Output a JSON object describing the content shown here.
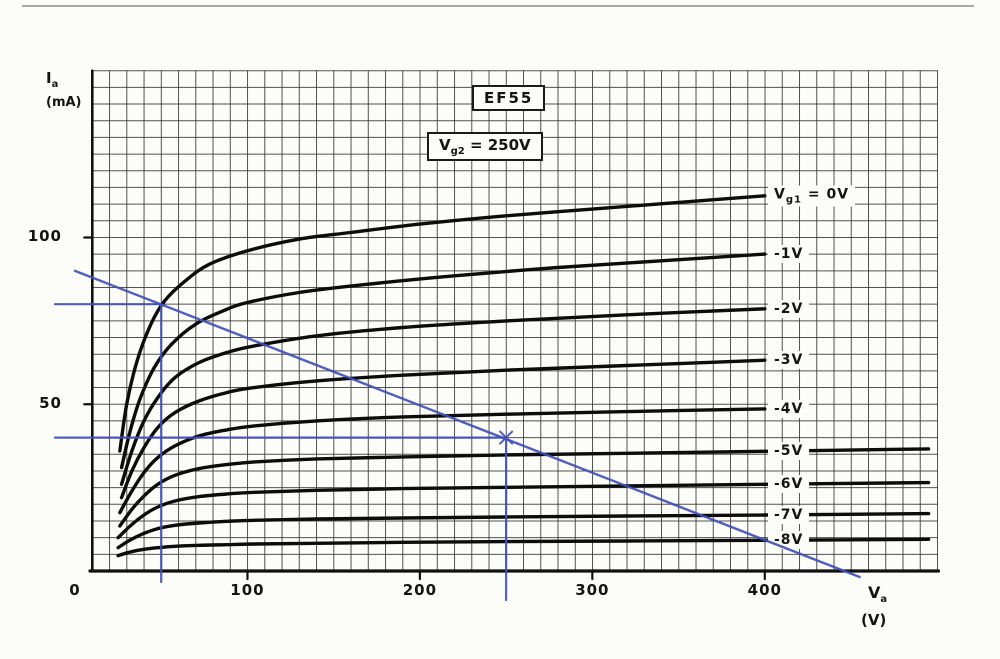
{
  "labels": {
    "title": "EF55",
    "screen": {
      "v": "V",
      "sub": "g2",
      "rest": " = 250V"
    },
    "y": {
      "main": "I",
      "sub": "a",
      "unit": "(mA)"
    },
    "x": {
      "main": "V",
      "sub": "a",
      "unit": "(V)"
    }
  },
  "axis": {
    "x_ticks": [
      {
        "v": 0,
        "label": "0"
      },
      {
        "v": 100,
        "label": "100"
      },
      {
        "v": 200,
        "label": "200"
      },
      {
        "v": 300,
        "label": "300"
      },
      {
        "v": 400,
        "label": "400"
      }
    ],
    "y_ticks": [
      {
        "v": 100,
        "label": "100"
      },
      {
        "v": 50,
        "label": "50"
      }
    ]
  },
  "chart_data": {
    "type": "line",
    "title": "EF55 anode characteristics",
    "condition": "Vg2 = 250V",
    "xlabel": "Va (V)",
    "ylabel": "Ia (mA)",
    "xlim": [
      0,
      500
    ],
    "ylim": [
      0,
      148
    ],
    "grid": {
      "minor_x_V": 10,
      "minor_y_mA": 5,
      "on": true
    },
    "curve_color": "#0c0c0c",
    "series": [
      {
        "vg1": "0V",
        "label_parts": [
          {
            "t": "V"
          },
          {
            "s": "g1"
          },
          {
            "t": " = 0V"
          }
        ],
        "points": [
          [
            26,
            36
          ],
          [
            30,
            50
          ],
          [
            36,
            63
          ],
          [
            44,
            74
          ],
          [
            52,
            81
          ],
          [
            64,
            87
          ],
          [
            78,
            92
          ],
          [
            100,
            96
          ],
          [
            130,
            99.5
          ],
          [
            160,
            101.5
          ],
          [
            200,
            104
          ],
          [
            250,
            106.5
          ],
          [
            300,
            108.5
          ],
          [
            350,
            110.5
          ],
          [
            400,
            112.5
          ]
        ]
      },
      {
        "vg1": "-1V",
        "label_parts": [
          {
            "t": "-1V"
          }
        ],
        "points": [
          [
            27,
            31
          ],
          [
            32,
            42
          ],
          [
            38,
            52
          ],
          [
            46,
            61
          ],
          [
            56,
            68
          ],
          [
            70,
            74
          ],
          [
            86,
            78
          ],
          [
            100,
            80.5
          ],
          [
            130,
            83.5
          ],
          [
            170,
            86
          ],
          [
            220,
            88.5
          ],
          [
            280,
            91
          ],
          [
            340,
            93
          ],
          [
            400,
            95
          ]
        ]
      },
      {
        "vg1": "-2V",
        "label_parts": [
          {
            "t": "-2V"
          }
        ],
        "points": [
          [
            27,
            26
          ],
          [
            33,
            36
          ],
          [
            40,
            45
          ],
          [
            48,
            52
          ],
          [
            58,
            58
          ],
          [
            72,
            62.5
          ],
          [
            88,
            65.5
          ],
          [
            104,
            67.5
          ],
          [
            140,
            70.5
          ],
          [
            190,
            73
          ],
          [
            250,
            75
          ],
          [
            320,
            76.8
          ],
          [
            400,
            78.6
          ]
        ]
      },
      {
        "vg1": "-3V",
        "label_parts": [
          {
            "t": "-3V"
          }
        ],
        "points": [
          [
            27,
            22
          ],
          [
            33,
            30
          ],
          [
            40,
            37
          ],
          [
            48,
            43
          ],
          [
            58,
            47.5
          ],
          [
            72,
            51
          ],
          [
            88,
            53.5
          ],
          [
            104,
            55
          ],
          [
            140,
            57
          ],
          [
            190,
            58.7
          ],
          [
            250,
            60.2
          ],
          [
            320,
            61.6
          ],
          [
            400,
            63.2
          ]
        ]
      },
      {
        "vg1": "-4V",
        "label_parts": [
          {
            "t": "-4V"
          }
        ],
        "points": [
          [
            26,
            17.5
          ],
          [
            33,
            24
          ],
          [
            40,
            29.5
          ],
          [
            48,
            34
          ],
          [
            58,
            37.5
          ],
          [
            72,
            40.5
          ],
          [
            88,
            42.3
          ],
          [
            104,
            43.5
          ],
          [
            140,
            45
          ],
          [
            190,
            46.2
          ],
          [
            250,
            47
          ],
          [
            320,
            47.8
          ],
          [
            400,
            48.6
          ]
        ]
      },
      {
        "vg1": "-5V",
        "label_parts": [
          {
            "t": "-5V"
          }
        ],
        "points": [
          [
            26,
            13.5
          ],
          [
            33,
            18.5
          ],
          [
            40,
            22.5
          ],
          [
            48,
            26
          ],
          [
            58,
            28.7
          ],
          [
            72,
            30.7
          ],
          [
            88,
            31.9
          ],
          [
            104,
            32.7
          ],
          [
            140,
            33.6
          ],
          [
            190,
            34.2
          ],
          [
            250,
            34.8
          ],
          [
            320,
            35.3
          ],
          [
            400,
            35.9
          ],
          [
            495,
            36.6
          ]
        ]
      },
      {
        "vg1": "-6V",
        "label_parts": [
          {
            "t": "-6V"
          }
        ],
        "points": [
          [
            25,
            10
          ],
          [
            32,
            13.5
          ],
          [
            40,
            16.8
          ],
          [
            48,
            19.2
          ],
          [
            58,
            21
          ],
          [
            72,
            22.3
          ],
          [
            88,
            23.1
          ],
          [
            104,
            23.6
          ],
          [
            140,
            24.2
          ],
          [
            190,
            24.7
          ],
          [
            250,
            25.1
          ],
          [
            320,
            25.5
          ],
          [
            400,
            26
          ],
          [
            495,
            26.5
          ]
        ]
      },
      {
        "vg1": "-7V",
        "label_parts": [
          {
            "t": "-7V"
          }
        ],
        "points": [
          [
            25,
            7
          ],
          [
            32,
            9.3
          ],
          [
            40,
            11.3
          ],
          [
            48,
            12.7
          ],
          [
            58,
            13.7
          ],
          [
            72,
            14.4
          ],
          [
            88,
            14.9
          ],
          [
            104,
            15.2
          ],
          [
            140,
            15.6
          ],
          [
            190,
            15.9
          ],
          [
            250,
            16.2
          ],
          [
            320,
            16.5
          ],
          [
            400,
            16.8
          ],
          [
            495,
            17.2
          ]
        ]
      },
      {
        "vg1": "-8V",
        "label_parts": [
          {
            "t": "-8V"
          }
        ],
        "points": [
          [
            25,
            4.6
          ],
          [
            32,
            5.7
          ],
          [
            40,
            6.5
          ],
          [
            48,
            7
          ],
          [
            58,
            7.4
          ],
          [
            72,
            7.7
          ],
          [
            88,
            7.9
          ],
          [
            104,
            8.1
          ],
          [
            140,
            8.3
          ],
          [
            190,
            8.6
          ],
          [
            250,
            8.8
          ],
          [
            320,
            9
          ],
          [
            400,
            9.2
          ],
          [
            495,
            9.5
          ]
        ]
      }
    ],
    "load_line": {
      "color": "#4050bc",
      "ia_intercept_mA": 90,
      "va_intercept_V": 452,
      "points": [
        [
          0,
          90
        ],
        [
          455,
          -1.8
        ]
      ]
    },
    "operating_points": [
      {
        "va": 50,
        "ia": 80,
        "guide_drop": 11,
        "marker": false
      },
      {
        "va": 250,
        "ia": 40,
        "guide_drop": 29,
        "marker": true
      }
    ]
  }
}
